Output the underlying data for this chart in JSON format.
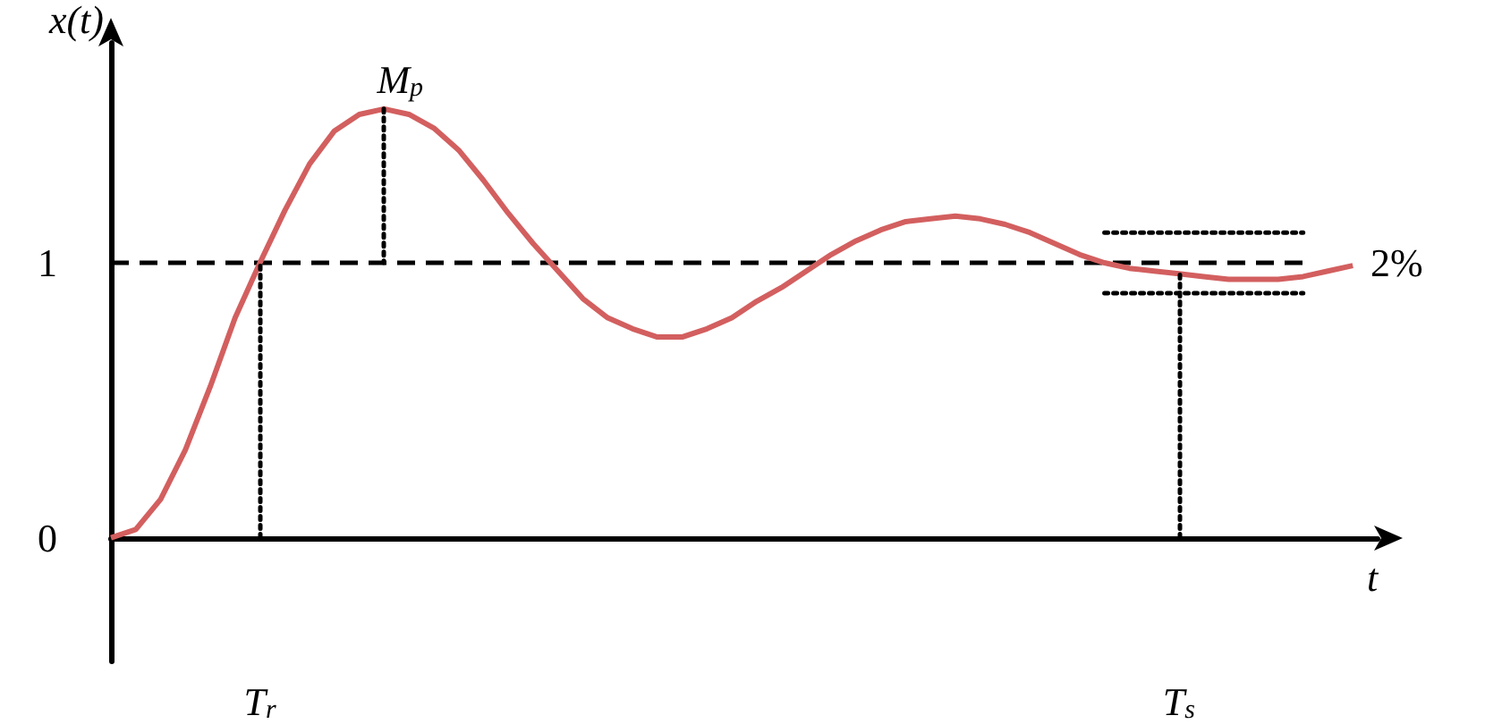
{
  "chart_data": {
    "type": "line",
    "xlabel": "t",
    "ylabel": "x(t)",
    "ylim": [
      -0.45,
      1.8
    ],
    "yticks": [
      0,
      1
    ],
    "categories": [
      null,
      null,
      null,
      null,
      null,
      null,
      "T$_{r}$",
      null,
      null,
      null,
      null,
      null,
      null,
      null,
      null,
      null,
      null,
      null,
      null,
      null,
      null,
      null,
      null,
      null,
      null,
      null,
      null,
      null,
      null,
      null,
      null,
      null,
      null,
      null,
      null,
      null,
      null,
      null,
      null,
      null,
      null,
      null,
      null,
      "T$_{s}$",
      null,
      null,
      null,
      null,
      null,
      null,
      null,
      null
    ],
    "grid": false,
    "marker": "none",
    "annotations": [
      {
        "text": "M$_{p}$",
        "y": 1.56
      },
      "2%"
    ],
    "ref_lines": [
      {
        "axis": "x",
        "value": "T$_{r}$",
        "color": "#000000",
        "line_style": "dotted"
      },
      {
        "axis": "x",
        "value": "T$_{s}$",
        "color": "#000000",
        "line_style": "dotted"
      }
    ],
    "series": [
      {
        "color": "#d35f5f",
        "line_style": "solid",
        "values": [
          0,
          0.03,
          0.14,
          0.32,
          0.55,
          0.8,
          1.0,
          1.19,
          1.36,
          1.48,
          1.54,
          1.56,
          1.54,
          1.49,
          1.41,
          1.3,
          1.18,
          1.07,
          0.97,
          0.87,
          0.8,
          0.76,
          0.73,
          0.73,
          0.76,
          0.8,
          0.86,
          0.91,
          0.97,
          1.03,
          1.08,
          1.12,
          1.15,
          1.16,
          1.17,
          1.16,
          1.14,
          1.11,
          1.07,
          1.03,
          1.0,
          0.98,
          0.97,
          0.96,
          0.95,
          0.94,
          0.94,
          0.94,
          0.95,
          0.97,
          0.99,
          null
        ]
      },
      {
        "color": "#000000",
        "line_style": "dashed",
        "values": [
          1,
          1,
          1,
          1,
          1,
          1,
          1,
          1,
          1,
          1,
          1,
          1,
          1,
          1,
          1,
          1,
          1,
          1,
          1,
          1,
          1,
          1,
          1,
          1,
          1,
          1,
          1,
          1,
          1,
          1,
          1,
          1,
          1,
          1,
          1,
          1,
          1,
          1,
          1,
          1,
          1,
          1,
          1,
          1,
          1,
          1,
          1,
          1,
          1,
          null,
          null,
          null
        ]
      },
      {
        "color": "#000000",
        "line_style": "dotted",
        "values": [
          null,
          null,
          null,
          null,
          null,
          null,
          null,
          null,
          null,
          null,
          null,
          null,
          null,
          null,
          null,
          null,
          null,
          null,
          null,
          null,
          null,
          null,
          null,
          null,
          null,
          null,
          null,
          null,
          null,
          null,
          null,
          null,
          null,
          null,
          null,
          null,
          null,
          null,
          null,
          null,
          1.11,
          1.11,
          1.11,
          1.11,
          1.11,
          1.11,
          1.11,
          1.11,
          1.11,
          null,
          null,
          null
        ]
      },
      {
        "color": "#000000",
        "line_style": "dotted",
        "values": [
          null,
          null,
          null,
          null,
          null,
          null,
          null,
          null,
          null,
          null,
          null,
          null,
          null,
          null,
          null,
          null,
          null,
          null,
          null,
          null,
          null,
          null,
          null,
          null,
          null,
          null,
          null,
          null,
          null,
          null,
          null,
          null,
          null,
          null,
          null,
          null,
          null,
          null,
          null,
          null,
          0.89,
          0.89,
          0.89,
          0.89,
          0.89,
          0.89,
          0.89,
          0.89,
          0.89,
          null,
          null,
          null
        ]
      }
    ]
  }
}
